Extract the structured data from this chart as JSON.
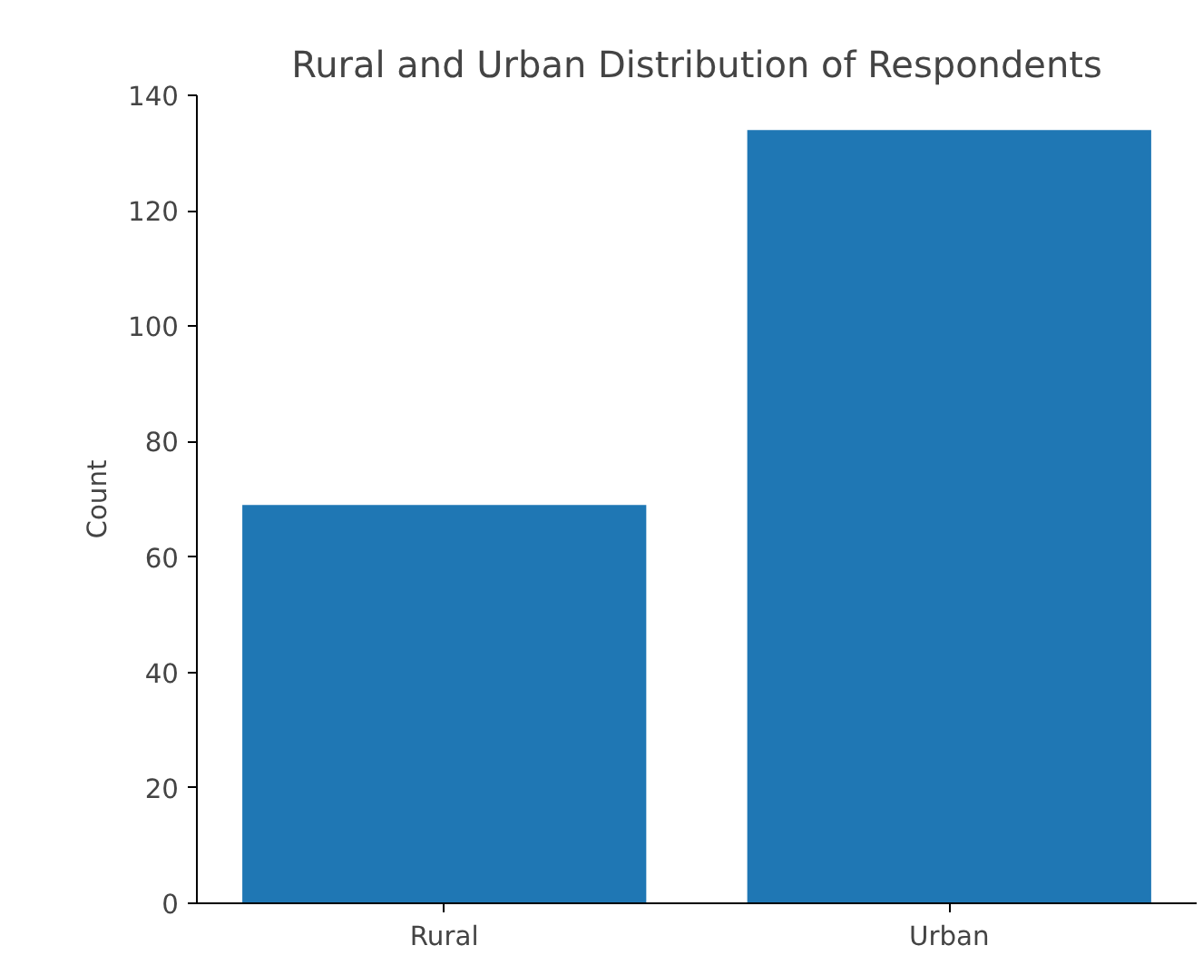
{
  "chart_data": {
    "type": "bar",
    "title": "Rural and Urban Distribution of Respondents",
    "ylabel": "Count",
    "categories": [
      "Rural",
      "Urban"
    ],
    "values": [
      69,
      134
    ],
    "color": "#1f77b4",
    "ylim": [
      0,
      140
    ],
    "yticks": [
      0,
      20,
      40,
      60,
      80,
      100,
      120,
      140
    ],
    "grid": false
  }
}
